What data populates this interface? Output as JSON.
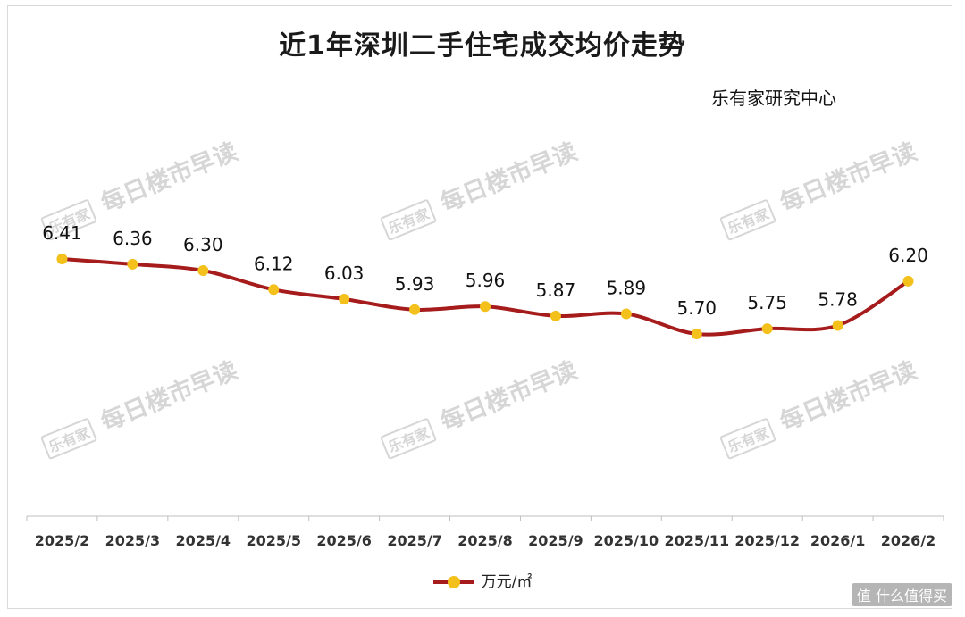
{
  "title": "近1年深圳二手住宅成交均价走势",
  "source_label": "乐有家研究中心",
  "watermark": {
    "logo_text": "乐有家",
    "text": "每日楼市早读"
  },
  "corner_brand": "值 什么值得买",
  "colors": {
    "line": "#a61b1b",
    "marker": "#f3c01c",
    "axis": "#bfbfbf"
  },
  "chart_data": {
    "type": "line",
    "categories": [
      "2025/2",
      "2025/3",
      "2025/4",
      "2025/5",
      "2025/6",
      "2025/7",
      "2025/8",
      "2025/9",
      "2025/10",
      "2025/11",
      "2025/12",
      "2026/1",
      "2026/2"
    ],
    "series": [
      {
        "name": "万元/㎡",
        "values": [
          6.41,
          6.36,
          6.3,
          6.12,
          6.03,
          5.93,
          5.96,
          5.87,
          5.89,
          5.7,
          5.75,
          5.78,
          6.2
        ]
      }
    ],
    "data_labels": [
      "6.41",
      "6.36",
      "6.30",
      "6.12",
      "6.03",
      "5.93",
      "5.96",
      "5.87",
      "5.89",
      "5.70",
      "5.75",
      "5.78",
      "6.20"
    ],
    "title": "近1年深圳二手住宅成交均价走势",
    "xlabel": "",
    "ylabel": "",
    "smooth": true,
    "grid": false,
    "legend": "bottom-center"
  }
}
